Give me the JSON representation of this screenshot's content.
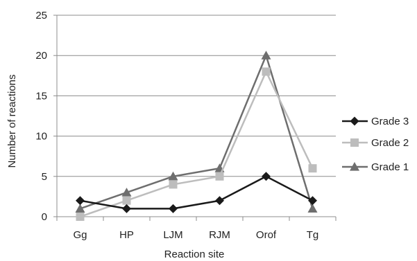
{
  "chart_data": {
    "type": "line",
    "title": "",
    "xlabel": "Reaction site",
    "ylabel": "Number of reactions",
    "categories": [
      "Gg",
      "HP",
      "LJM",
      "RJM",
      "Orof",
      "Tg"
    ],
    "ylim": [
      0,
      25
    ],
    "yticks": [
      0,
      5,
      10,
      15,
      20,
      25
    ],
    "grid": "horizontal",
    "legend": "right",
    "series": [
      {
        "name": "Grade 3",
        "values": [
          2,
          1,
          1,
          2,
          5,
          2
        ],
        "color": "#1a1a1a",
        "marker": "diamond"
      },
      {
        "name": "Grade 2",
        "values": [
          0,
          2,
          4,
          5,
          18,
          6
        ],
        "color": "#bdbdbd",
        "marker": "square"
      },
      {
        "name": "Grade 1",
        "values": [
          1,
          3,
          5,
          6,
          20,
          1
        ],
        "color": "#6e6e6e",
        "marker": "triangle"
      }
    ]
  }
}
